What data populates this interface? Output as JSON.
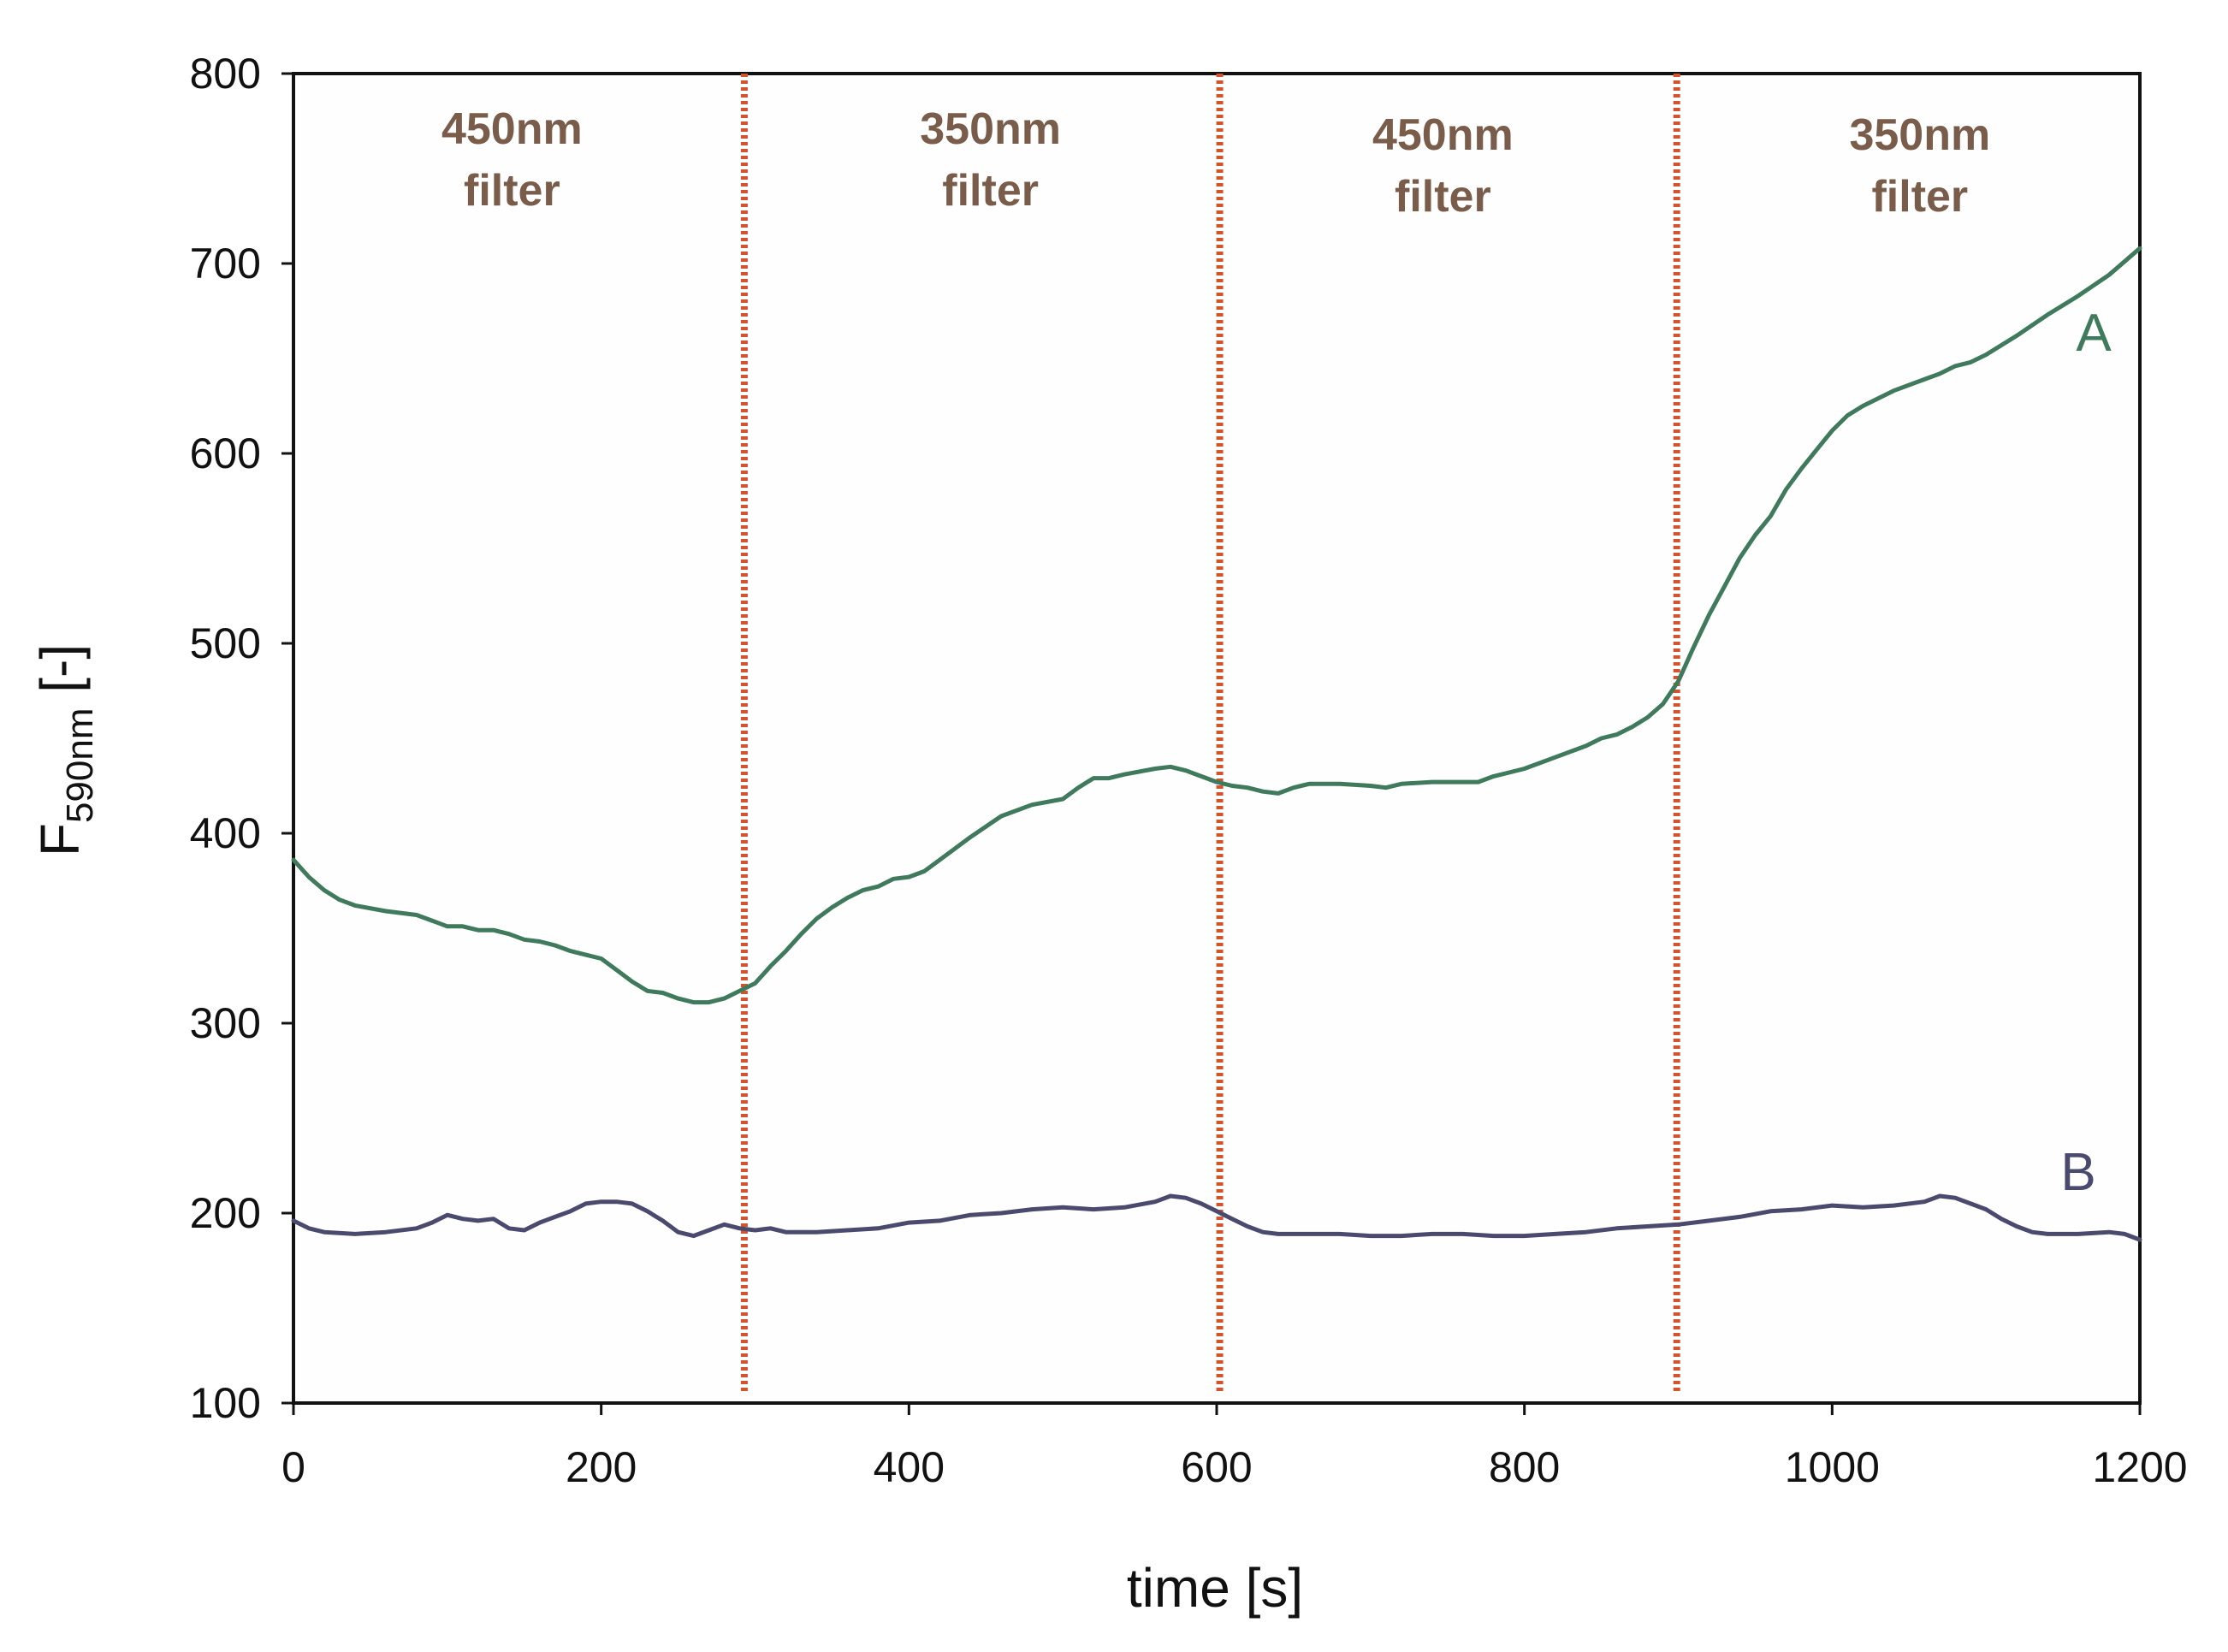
{
  "chart_data": {
    "type": "line",
    "title": "",
    "xlabel": "time [s]",
    "ylabel": {
      "main": "F",
      "subscript": "590nm",
      "suffix": " [-]"
    },
    "xlim": [
      0,
      1200
    ],
    "ylim": [
      100,
      800
    ],
    "xticks": [
      0,
      200,
      400,
      600,
      800,
      1000,
      1200
    ],
    "yticks": [
      100,
      200,
      300,
      400,
      500,
      600,
      700,
      800
    ],
    "grid": false,
    "vlines": [
      {
        "x": 293,
        "color": "#d2542f",
        "style": "dotted"
      },
      {
        "x": 602,
        "color": "#d2542f",
        "style": "dotted"
      },
      {
        "x": 899,
        "color": "#d2542f",
        "style": "dotted"
      }
    ],
    "regions": [
      {
        "x": 142,
        "line1": "450nm",
        "line2": "filter"
      },
      {
        "x": 453,
        "line1": "350nm",
        "line2": "filter"
      },
      {
        "x": 747,
        "line1": "450nm",
        "line2": "filter"
      },
      {
        "x": 1057,
        "line1": "350nm",
        "line2": "filter"
      }
    ],
    "series": [
      {
        "name": "A",
        "color": "#3f7a5d",
        "label_x": 1170,
        "label_y": 664,
        "x": [
          0,
          10,
          20,
          30,
          40,
          60,
          80,
          90,
          100,
          110,
          120,
          130,
          140,
          150,
          160,
          170,
          180,
          190,
          200,
          210,
          220,
          230,
          240,
          250,
          260,
          270,
          280,
          290,
          300,
          310,
          320,
          330,
          340,
          350,
          360,
          370,
          380,
          390,
          400,
          410,
          420,
          440,
          460,
          480,
          500,
          510,
          520,
          530,
          540,
          560,
          570,
          580,
          590,
          600,
          610,
          620,
          630,
          640,
          650,
          660,
          680,
          700,
          710,
          720,
          740,
          760,
          770,
          780,
          790,
          800,
          820,
          840,
          850,
          860,
          870,
          880,
          890,
          900,
          910,
          920,
          930,
          940,
          950,
          960,
          970,
          980,
          990,
          1000,
          1010,
          1020,
          1040,
          1060,
          1070,
          1080,
          1090,
          1100,
          1120,
          1140,
          1160,
          1180,
          1200
        ],
        "values": [
          386,
          377,
          370,
          365,
          362,
          359,
          357,
          354,
          351,
          351,
          349,
          349,
          347,
          344,
          343,
          341,
          338,
          336,
          334,
          328,
          322,
          317,
          316,
          313,
          311,
          311,
          313,
          317,
          321,
          330,
          338,
          347,
          355,
          361,
          366,
          370,
          372,
          376,
          377,
          380,
          386,
          398,
          409,
          415,
          418,
          424,
          429,
          429,
          431,
          434,
          435,
          433,
          430,
          427,
          425,
          424,
          422,
          421,
          424,
          426,
          426,
          425,
          424,
          426,
          427,
          427,
          427,
          430,
          432,
          434,
          440,
          446,
          450,
          452,
          456,
          461,
          468,
          480,
          498,
          515,
          530,
          545,
          557,
          567,
          581,
          592,
          602,
          612,
          620,
          625,
          633,
          639,
          642,
          646,
          648,
          652,
          662,
          673,
          683,
          694,
          708
        ]
      },
      {
        "name": "B",
        "color": "#4a4a6e",
        "label_x": 1160,
        "label_y": 222,
        "x": [
          0,
          10,
          20,
          40,
          60,
          80,
          90,
          100,
          110,
          120,
          130,
          140,
          150,
          160,
          170,
          180,
          190,
          200,
          210,
          220,
          230,
          240,
          250,
          260,
          270,
          280,
          290,
          300,
          310,
          320,
          340,
          360,
          380,
          400,
          420,
          440,
          460,
          480,
          500,
          520,
          540,
          560,
          570,
          580,
          590,
          600,
          610,
          620,
          630,
          640,
          660,
          680,
          700,
          720,
          740,
          760,
          780,
          800,
          820,
          840,
          860,
          880,
          900,
          920,
          940,
          960,
          980,
          1000,
          1020,
          1040,
          1060,
          1070,
          1080,
          1090,
          1100,
          1110,
          1120,
          1130,
          1140,
          1160,
          1180,
          1190,
          1200
        ],
        "values": [
          196,
          192,
          190,
          189,
          190,
          192,
          195,
          199,
          197,
          196,
          197,
          192,
          191,
          195,
          198,
          201,
          205,
          206,
          206,
          205,
          201,
          196,
          190,
          188,
          191,
          194,
          192,
          191,
          192,
          190,
          190,
          191,
          192,
          195,
          196,
          199,
          200,
          202,
          203,
          202,
          203,
          206,
          209,
          208,
          205,
          201,
          197,
          193,
          190,
          189,
          189,
          189,
          188,
          188,
          189,
          189,
          188,
          188,
          189,
          190,
          192,
          193,
          194,
          196,
          198,
          201,
          202,
          204,
          203,
          204,
          206,
          209,
          208,
          205,
          202,
          197,
          193,
          190,
          189,
          189,
          190,
          189,
          186
        ]
      }
    ]
  }
}
